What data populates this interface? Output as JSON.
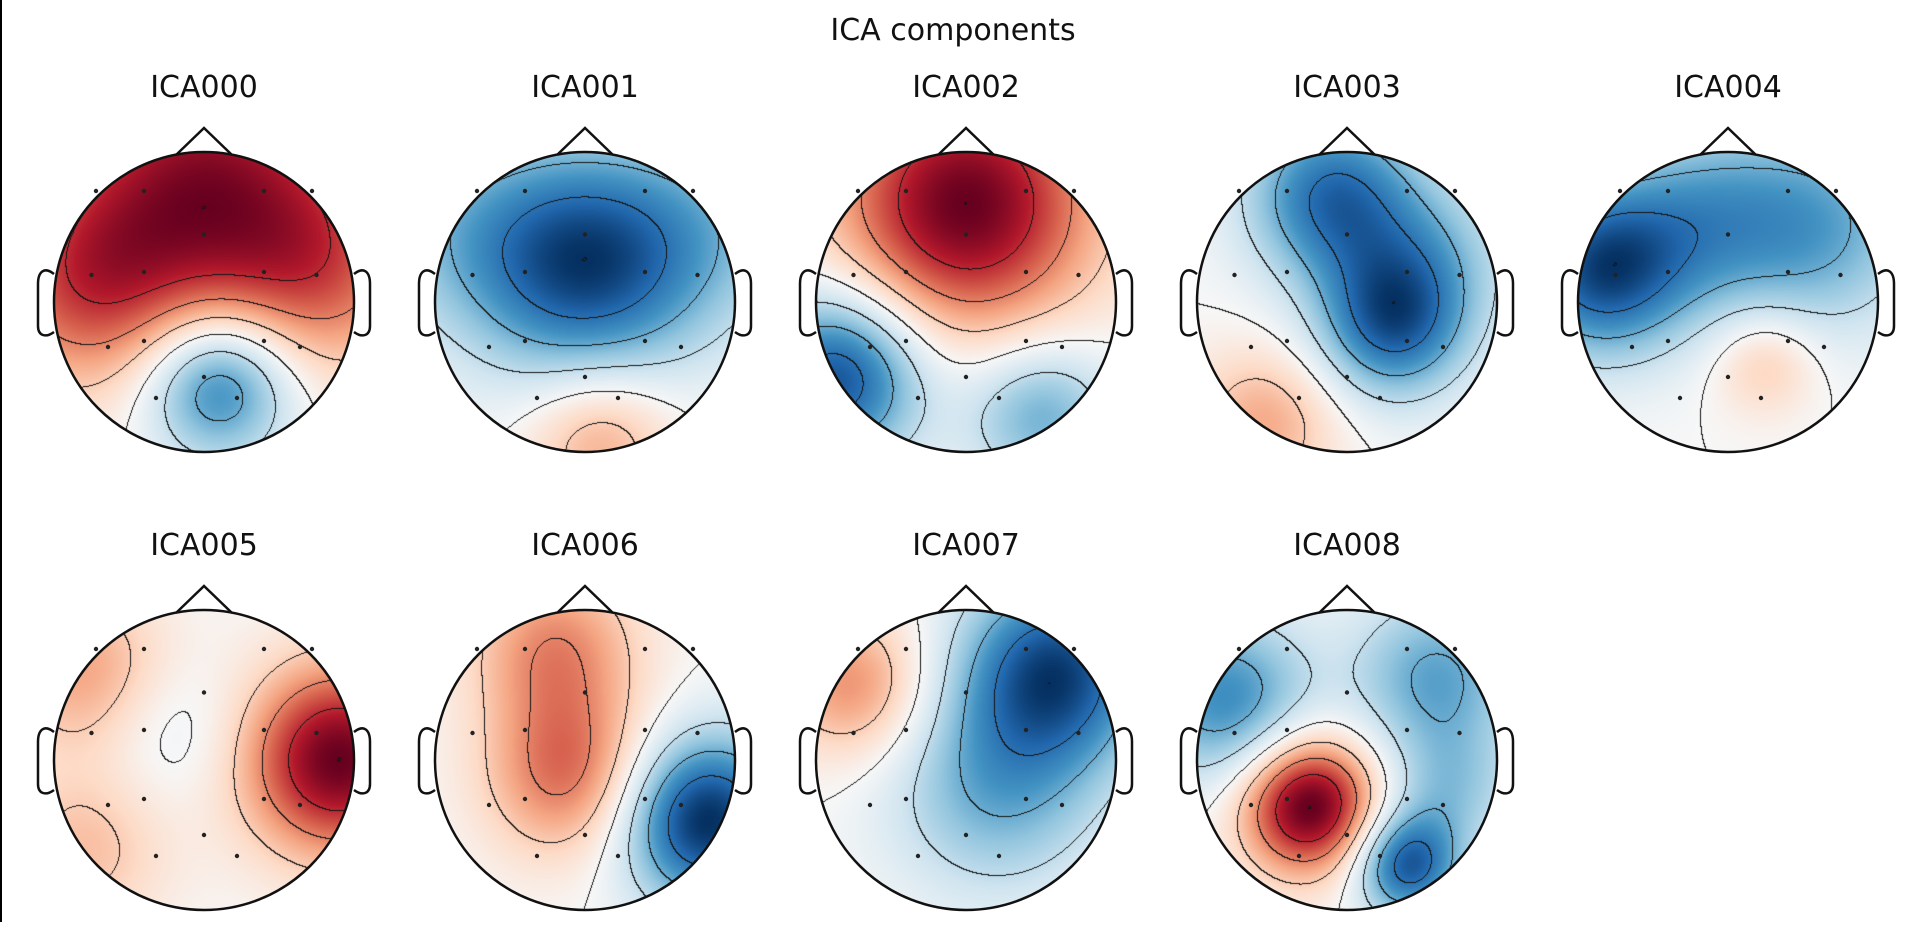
{
  "figure": {
    "title": "ICA components"
  },
  "colors": {
    "background": "#ffffff",
    "outline": "#111111",
    "sensor": "#222222",
    "colormap": "RdBu_r"
  },
  "chart_data": {
    "type": "heatmap",
    "subtype": "topomap-grid",
    "title": "ICA components",
    "layout": {
      "rows": 2,
      "columns": 5
    },
    "colormap": "RdBu_r",
    "value_range": [
      -1,
      1
    ],
    "sensors": [
      {
        "x": -0.72,
        "y": 0.74
      },
      {
        "x": -0.4,
        "y": 0.74
      },
      {
        "x": 0.4,
        "y": 0.74
      },
      {
        "x": 0.72,
        "y": 0.74
      },
      {
        "x": -0.75,
        "y": 0.18
      },
      {
        "x": -0.4,
        "y": 0.2
      },
      {
        "x": 0.4,
        "y": 0.2
      },
      {
        "x": 0.75,
        "y": 0.18
      },
      {
        "x": -0.64,
        "y": -0.3
      },
      {
        "x": -0.4,
        "y": -0.26
      },
      {
        "x": 0.4,
        "y": -0.26
      },
      {
        "x": 0.64,
        "y": -0.3
      },
      {
        "x": -0.32,
        "y": -0.64
      },
      {
        "x": 0.22,
        "y": -0.64
      },
      {
        "x": 0.0,
        "y": -0.5
      },
      {
        "x": 0.0,
        "y": 0.45
      }
    ],
    "components": [
      {
        "name": "ICA000",
        "sources": [
          {
            "x": 0.0,
            "y": 0.8,
            "a": 1.0,
            "s": 0.7
          },
          {
            "x": -0.8,
            "y": 0.1,
            "a": 0.6,
            "s": 0.5
          },
          {
            "x": 0.8,
            "y": 0.2,
            "a": 0.5,
            "s": 0.5
          },
          {
            "x": 0.1,
            "y": -0.55,
            "a": -0.9,
            "s": 0.35
          }
        ]
      },
      {
        "name": "ICA001",
        "sources": [
          {
            "x": 0.0,
            "y": 0.25,
            "a": -1.0,
            "s": 0.55
          },
          {
            "x": 0.1,
            "y": -0.9,
            "a": 0.45,
            "s": 0.35
          },
          {
            "x": -0.9,
            "y": 0.5,
            "a": -0.3,
            "s": 0.5
          },
          {
            "x": 0.9,
            "y": 0.5,
            "a": -0.3,
            "s": 0.5
          }
        ]
      },
      {
        "name": "ICA002",
        "sources": [
          {
            "x": 0.0,
            "y": 0.65,
            "a": 1.0,
            "s": 0.6
          },
          {
            "x": -0.85,
            "y": -0.5,
            "a": -0.9,
            "s": 0.4
          },
          {
            "x": 0.5,
            "y": -0.75,
            "a": -0.5,
            "s": 0.35
          }
        ]
      },
      {
        "name": "ICA003",
        "sources": [
          {
            "x": -0.1,
            "y": 0.7,
            "a": -0.9,
            "s": 0.4
          },
          {
            "x": 0.3,
            "y": -0.15,
            "a": -0.9,
            "s": 0.35
          },
          {
            "x": 0.55,
            "y": 0.3,
            "a": -0.4,
            "s": 0.4
          },
          {
            "x": -0.55,
            "y": -0.8,
            "a": 0.45,
            "s": 0.35
          }
        ]
      },
      {
        "name": "ICA004",
        "sources": [
          {
            "x": -0.85,
            "y": 0.2,
            "a": -1.0,
            "s": 0.4
          },
          {
            "x": 0.6,
            "y": 0.5,
            "a": -0.6,
            "s": 0.5
          },
          {
            "x": 0.25,
            "y": -0.4,
            "a": 0.35,
            "s": 0.25
          },
          {
            "x": -0.2,
            "y": 0.55,
            "a": -0.5,
            "s": 0.45
          }
        ]
      },
      {
        "name": "ICA005",
        "sources": [
          {
            "x": 0.9,
            "y": 0.0,
            "a": 1.0,
            "s": 0.45
          },
          {
            "x": -0.8,
            "y": 0.6,
            "a": 0.4,
            "s": 0.4
          },
          {
            "x": -0.8,
            "y": -0.6,
            "a": 0.3,
            "s": 0.4
          },
          {
            "x": -0.2,
            "y": 0.2,
            "a": -0.15,
            "s": 0.35
          }
        ]
      },
      {
        "name": "ICA006",
        "sources": [
          {
            "x": 0.8,
            "y": -0.4,
            "a": -1.0,
            "s": 0.4
          },
          {
            "x": -0.1,
            "y": -0.1,
            "a": 0.55,
            "s": 0.4
          },
          {
            "x": -0.2,
            "y": 0.75,
            "a": 0.45,
            "s": 0.4
          }
        ]
      },
      {
        "name": "ICA007",
        "sources": [
          {
            "x": 0.6,
            "y": 0.6,
            "a": -0.85,
            "s": 0.45
          },
          {
            "x": 0.2,
            "y": -0.2,
            "a": -0.45,
            "s": 0.5
          },
          {
            "x": -0.75,
            "y": 0.5,
            "a": 0.45,
            "s": 0.35
          }
        ]
      },
      {
        "name": "ICA008",
        "sources": [
          {
            "x": -0.25,
            "y": -0.3,
            "a": 1.0,
            "s": 0.32
          },
          {
            "x": 0.4,
            "y": -0.7,
            "a": -0.8,
            "s": 0.25
          },
          {
            "x": -0.8,
            "y": 0.4,
            "a": -0.6,
            "s": 0.4
          },
          {
            "x": 0.6,
            "y": 0.55,
            "a": -0.5,
            "s": 0.4
          },
          {
            "x": 0.7,
            "y": -0.2,
            "a": -0.3,
            "s": 0.3
          }
        ]
      }
    ]
  }
}
